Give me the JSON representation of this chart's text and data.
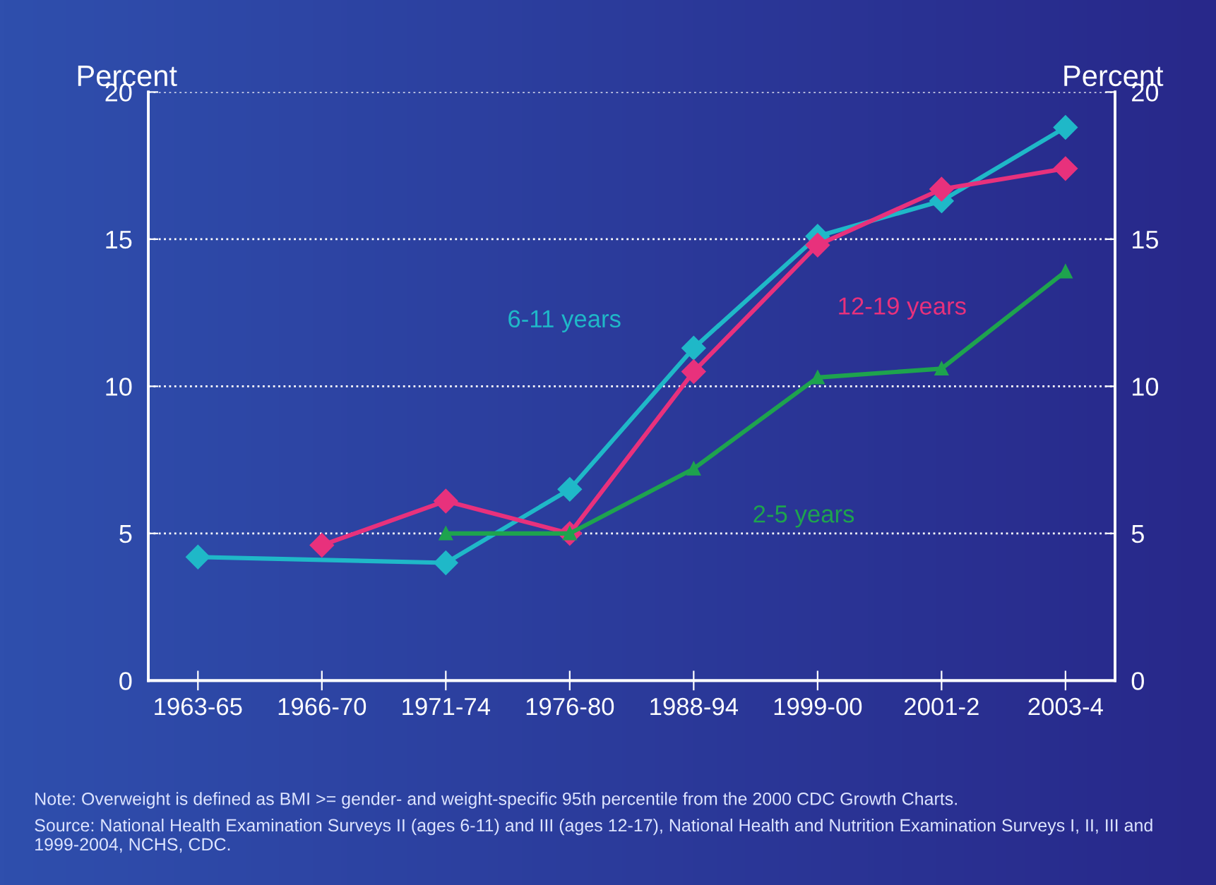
{
  "chart_data": {
    "type": "line",
    "ylabel": "Percent",
    "y2label": "Percent",
    "categories": [
      "1963-65",
      "1966-70",
      "1971-74",
      "1976-80",
      "1988-94",
      "1999-00",
      "2001-2",
      "2003-4"
    ],
    "ylim": [
      0,
      20
    ],
    "yticks": [
      0,
      5,
      10,
      15,
      20
    ],
    "y2lim": [
      0,
      20
    ],
    "y2ticks": [
      0,
      5,
      10,
      15,
      20
    ],
    "grid": "y",
    "legend": false,
    "line_style": "solid",
    "series": [
      {
        "name": "6-11 years",
        "color": "#1fb8c8",
        "marker": "diamond",
        "values": [
          4.2,
          null,
          4.0,
          6.5,
          11.3,
          15.1,
          16.3,
          18.8
        ]
      },
      {
        "name": "12-19 years",
        "color": "#e8317c",
        "marker": "diamond",
        "values": [
          null,
          4.6,
          6.1,
          5.0,
          10.5,
          14.8,
          16.7,
          17.4
        ]
      },
      {
        "name": "2-5 years",
        "color": "#1ea34e",
        "marker": "triangle",
        "values": [
          null,
          null,
          5.0,
          5.0,
          7.2,
          10.3,
          10.6,
          13.9
        ]
      }
    ],
    "annotations": [
      "Note: Overweight is defined as BMI >= gender- and weight-specific 95th percentile from the 2000 CDC Growth Charts.",
      "Source: National Health Examination Surveys II (ages 6-11) and III (ages 12-17), National Health and Nutrition Examination Surveys I, II, III and 1999-2004, NCHS, CDC."
    ]
  }
}
